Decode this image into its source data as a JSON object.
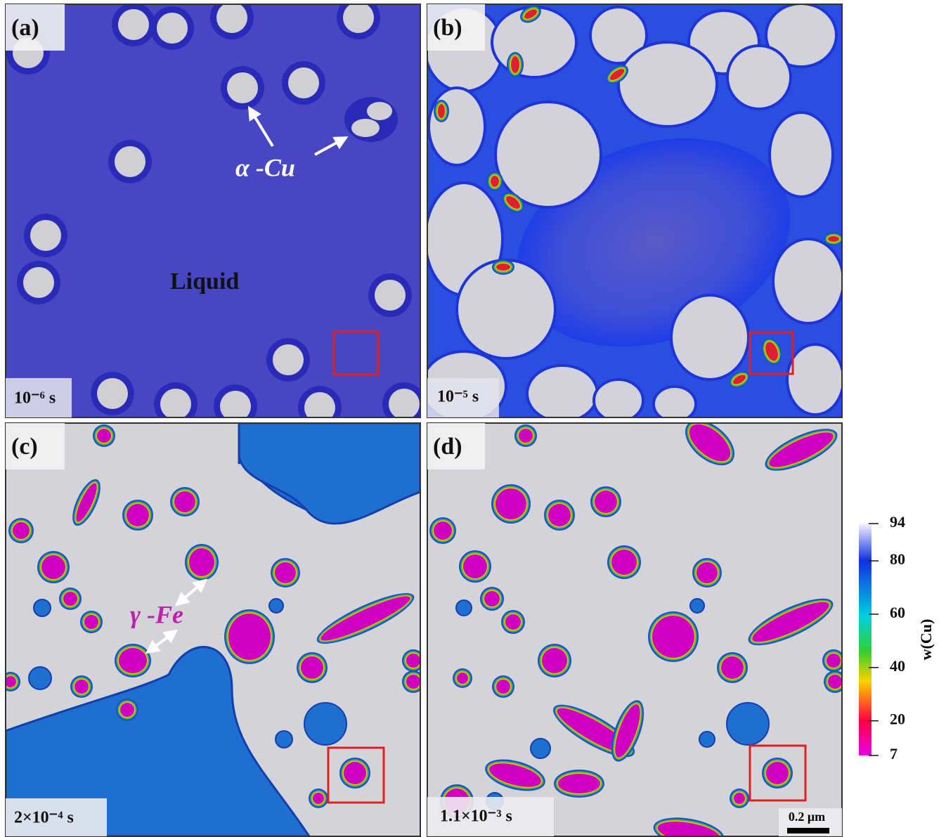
{
  "panels": [
    {
      "label": "(a)",
      "time": "10⁻⁶ s",
      "annotations": [
        "α -Cu",
        "Liquid"
      ]
    },
    {
      "label": "(b)",
      "time": "10⁻⁵ s"
    },
    {
      "label": "(c)",
      "time": "2×10⁻⁴ s",
      "annotations": [
        "γ -Fe"
      ]
    },
    {
      "label": "(d)",
      "time": "1.1×10⁻³ s",
      "scale_bar": "0.2 μm"
    }
  ],
  "colorbar": {
    "label": "w(Cu)",
    "range": [
      7,
      94
    ],
    "ticks": [
      94,
      80,
      60,
      40,
      20,
      7
    ]
  }
}
